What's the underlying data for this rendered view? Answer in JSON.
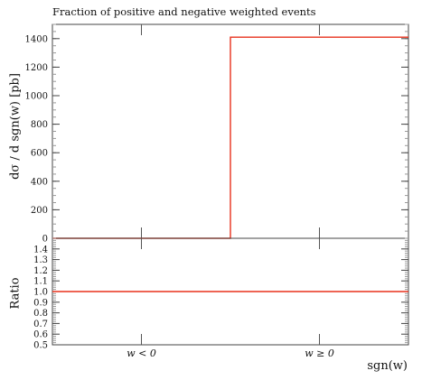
{
  "chart_data": [
    {
      "type": "line",
      "panel": "main",
      "title": "Fraction of positive and negative weighted events",
      "ylabel": "dσ / d sgn(w) [pb]",
      "xlabel": "sgn(w)",
      "categories": [
        "w < 0",
        "w ≥ 0"
      ],
      "series": [
        {
          "values": [
            0,
            1410
          ],
          "color": "#e8301c"
        }
      ],
      "ylim": [
        0,
        1500
      ],
      "yticks": [
        0,
        200,
        400,
        600,
        800,
        1000,
        1200,
        1400
      ],
      "grid": false
    },
    {
      "type": "line",
      "panel": "ratio",
      "ylabel": "Ratio",
      "categories": [
        "w < 0",
        "w ≥ 0"
      ],
      "series": [
        {
          "values": [
            1.0,
            1.0
          ],
          "color": "#e8301c"
        }
      ],
      "ylim": [
        0.5,
        1.5
      ],
      "yticks": [
        0.5,
        0.6,
        0.7,
        0.8,
        0.9,
        1.0,
        1.1,
        1.2,
        1.3,
        1.4
      ]
    }
  ],
  "display": {
    "title": "Fraction of positive and negative weighted events",
    "ylabel_main": "dσ / d sgn(w) [pb]",
    "ylabel_ratio": "Ratio",
    "xlabel": "sgn(w)"
  }
}
